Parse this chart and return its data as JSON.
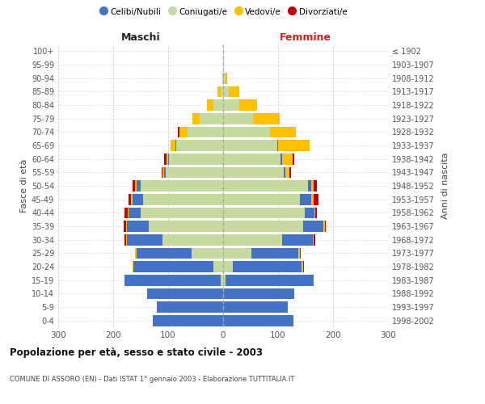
{
  "age_groups": [
    "0-4",
    "5-9",
    "10-14",
    "15-19",
    "20-24",
    "25-29",
    "30-34",
    "35-39",
    "40-44",
    "45-49",
    "50-54",
    "55-59",
    "60-64",
    "65-69",
    "70-74",
    "75-79",
    "80-84",
    "85-89",
    "90-94",
    "95-99",
    "100+"
  ],
  "birth_years": [
    "1998-2002",
    "1993-1997",
    "1988-1992",
    "1983-1987",
    "1978-1982",
    "1973-1977",
    "1968-1972",
    "1963-1967",
    "1958-1962",
    "1953-1957",
    "1948-1952",
    "1943-1947",
    "1938-1942",
    "1933-1937",
    "1928-1932",
    "1923-1927",
    "1918-1922",
    "1913-1917",
    "1908-1912",
    "1903-1907",
    "≤ 1902"
  ],
  "maschi_celibi": [
    128,
    120,
    138,
    175,
    145,
    100,
    65,
    40,
    22,
    20,
    8,
    3,
    2,
    2,
    0,
    0,
    0,
    0,
    0,
    0,
    0
  ],
  "maschi_coniugati": [
    0,
    0,
    0,
    5,
    18,
    58,
    110,
    135,
    150,
    145,
    150,
    105,
    98,
    85,
    65,
    42,
    18,
    5,
    2,
    0,
    0
  ],
  "maschi_vedovi": [
    0,
    0,
    0,
    0,
    2,
    2,
    2,
    2,
    2,
    2,
    3,
    2,
    3,
    8,
    15,
    14,
    12,
    5,
    0,
    0,
    0
  ],
  "maschi_divorziati": [
    0,
    0,
    0,
    0,
    0,
    1,
    3,
    4,
    5,
    5,
    3,
    2,
    5,
    0,
    3,
    0,
    0,
    0,
    0,
    0,
    0
  ],
  "femmine_celibi": [
    128,
    118,
    130,
    160,
    125,
    85,
    55,
    38,
    18,
    20,
    5,
    3,
    2,
    2,
    0,
    0,
    0,
    0,
    0,
    0,
    0
  ],
  "femmine_coniugati": [
    0,
    0,
    0,
    4,
    18,
    52,
    108,
    145,
    148,
    140,
    155,
    110,
    105,
    98,
    85,
    55,
    30,
    10,
    4,
    2,
    0
  ],
  "femmine_vedovi": [
    0,
    0,
    0,
    0,
    2,
    2,
    2,
    2,
    2,
    5,
    5,
    8,
    20,
    58,
    48,
    48,
    32,
    20,
    4,
    0,
    0
  ],
  "femmine_divorziati": [
    0,
    0,
    0,
    0,
    2,
    2,
    3,
    2,
    3,
    8,
    5,
    3,
    3,
    0,
    0,
    0,
    0,
    0,
    0,
    0,
    0
  ],
  "color_celibi": "#4472c4",
  "color_coniugati": "#c6d9a0",
  "color_vedovi": "#ffc000",
  "color_divorziati": "#c00000",
  "title": "Popolazione per età, sesso e stato civile - 2003",
  "subtitle": "COMUNE DI ASSORO (EN) - Dati ISTAT 1° gennaio 2003 - Elaborazione TUTTITALIA.IT",
  "xlabel_left": "Maschi",
  "xlabel_right": "Femmine",
  "ylabel_left": "Fasce di età",
  "ylabel_right": "Anni di nascita",
  "xlim": 300,
  "xticks": [
    -300,
    -200,
    -100,
    0,
    100,
    200,
    300
  ],
  "bg_color": "#ffffff",
  "grid_color": "#cccccc"
}
